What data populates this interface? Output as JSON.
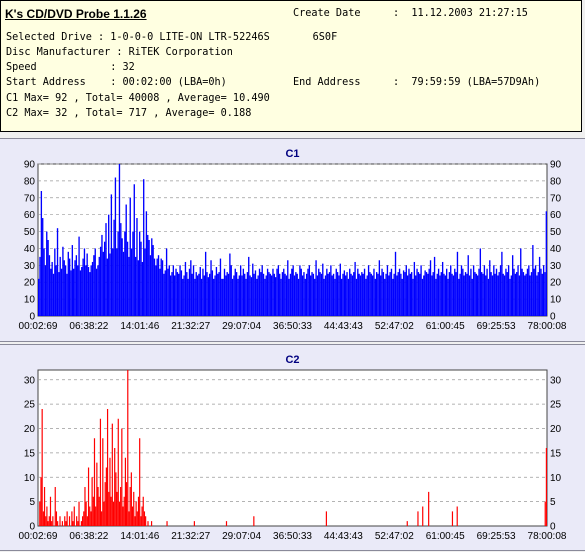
{
  "info": {
    "title": "K's CD/DVD Probe 1.1.26",
    "create_date_label": "Create Date",
    "create_date_value": ":  11.12.2003 21:27:15",
    "selected_drive": "Selected Drive : 1-0-0-0 LITE-ON LTR-52246S       6S0F",
    "disc_manufacturer": "Disc Manufacturer : RiTEK Corporation",
    "speed": "Speed            : 32",
    "start_address": "Start Address    : 00:02:00 (LBA=0h)",
    "end_address_label": "End Address",
    "end_address_value": ":  79:59:59 (LBA=57D9Ah)",
    "c1_summary": "C1 Max= 92 , Total= 40008 , Average= 10.490",
    "c2_summary": "C2 Max= 32 , Total= 717 , Average= 0.188"
  },
  "colors": {
    "c1_bar": "#0000ff",
    "c2_bar": "#ff0000",
    "title_color": "#000080",
    "plot_bg": "#ffffff",
    "grid": "#9a9a9a"
  },
  "chart_data": [
    {
      "type": "bar",
      "title": "C1",
      "x_start": "00:02:69",
      "x_end": "79:59:59",
      "x_tick_labels": [
        "00:02:69",
        "06:38:22",
        "14:01:46",
        "21:32:27",
        "29:07:04",
        "36:50:33",
        "44:43:43",
        "52:47:02",
        "61:00:45",
        "69:25:53",
        "78:00:08"
      ],
      "y_ticks": [
        0,
        10,
        20,
        30,
        40,
        50,
        60,
        70,
        80,
        90
      ],
      "ylim": [
        0,
        90
      ],
      "grid": true,
      "max": 92,
      "total": 40008,
      "average": 10.49,
      "series": [
        {
          "values": [
            22,
            35,
            74,
            58,
            40,
            30,
            50,
            45,
            36,
            28,
            32,
            25,
            40,
            30,
            52,
            26,
            35,
            28,
            41,
            33,
            30,
            25,
            38,
            34,
            27,
            42,
            28,
            33,
            36,
            30,
            47,
            27,
            29,
            34,
            40,
            30,
            37,
            29,
            26,
            30,
            32,
            36,
            40,
            28,
            30,
            35,
            41,
            48,
            38,
            44,
            55,
            34,
            60,
            37,
            72,
            40,
            57,
            82,
            40,
            50,
            91,
            55,
            46,
            38,
            50,
            66,
            44,
            35,
            70,
            40,
            50,
            78,
            35,
            58,
            33,
            50,
            44,
            32,
            81,
            40,
            62,
            48,
            45,
            36,
            46,
            42,
            34,
            30,
            34,
            36,
            28,
            34,
            33,
            25,
            27,
            40,
            28,
            30,
            24,
            26,
            30,
            24,
            28,
            26,
            25,
            30,
            27,
            22,
            24,
            32,
            26,
            22,
            28,
            33,
            25,
            30,
            22,
            26,
            24,
            25,
            29,
            22,
            28,
            24,
            38,
            26,
            23,
            25,
            33,
            27,
            22,
            24,
            29,
            25,
            26,
            34,
            22,
            22,
            28,
            24,
            26,
            25,
            37,
            30,
            22,
            24,
            28,
            26,
            22,
            24,
            30,
            24,
            28,
            25,
            22,
            26,
            35,
            24,
            23,
            31,
            25,
            27,
            22,
            24,
            28,
            26,
            30,
            25,
            22,
            24,
            28,
            26,
            25,
            24,
            28,
            25,
            23,
            28,
            30,
            25,
            22,
            26,
            28,
            25,
            24,
            33,
            22,
            25,
            28,
            30,
            24,
            26,
            25,
            22,
            30,
            28,
            24,
            26,
            22,
            25,
            28,
            30,
            24,
            26,
            25,
            22,
            33,
            24,
            28,
            26,
            25,
            31,
            22,
            24,
            28,
            25,
            26,
            30,
            24,
            25,
            22,
            28,
            26,
            24,
            31,
            22,
            25,
            27,
            24,
            26,
            22,
            28,
            25,
            24,
            26,
            32,
            22,
            28,
            25,
            24,
            26,
            25,
            28,
            22,
            24,
            30,
            26,
            25,
            24,
            28,
            22,
            26,
            25,
            33,
            24,
            28,
            26,
            22,
            25,
            30,
            24,
            26,
            28,
            22,
            25,
            38,
            24,
            26,
            28,
            25,
            22,
            27,
            26,
            30,
            24,
            28,
            25,
            26,
            22,
            32,
            24,
            28,
            26,
            25,
            30,
            22,
            24,
            27,
            26,
            25,
            28,
            33,
            24,
            26,
            35,
            22,
            25,
            28,
            24,
            26,
            32,
            25,
            24,
            28,
            22,
            26,
            30,
            25,
            24,
            28,
            26,
            38,
            22,
            25,
            30,
            28,
            24,
            26,
            25,
            36,
            24,
            28,
            22,
            30,
            26,
            25,
            24,
            28,
            40,
            26,
            25,
            30,
            24,
            28,
            22,
            33,
            26,
            24,
            30,
            25,
            28,
            24,
            26,
            30,
            38,
            25,
            24,
            28,
            26,
            30,
            22,
            24,
            36,
            28,
            25,
            26,
            30,
            24,
            40,
            28,
            26,
            24,
            25,
            28,
            30,
            24,
            26,
            42,
            28,
            30,
            24,
            26,
            35,
            28,
            25,
            30,
            26,
            62
          ]
        }
      ]
    },
    {
      "type": "bar",
      "title": "C2",
      "x_start": "00:02:69",
      "x_end": "79:59:59",
      "x_tick_labels": [
        "00:02:69",
        "06:38:22",
        "14:01:46",
        "21:32:27",
        "29:07:04",
        "36:50:33",
        "44:43:43",
        "52:47:02",
        "61:00:45",
        "69:25:53",
        "78:00:08"
      ],
      "y_ticks": [
        0,
        5,
        10,
        15,
        20,
        25,
        30
      ],
      "ylim": [
        0,
        32
      ],
      "grid": true,
      "max": 32,
      "total": 717,
      "average": 0.188,
      "series": [
        {
          "values": [
            0,
            5,
            10,
            24,
            3,
            8,
            2,
            4,
            1,
            2,
            6,
            1,
            2,
            0,
            8,
            3,
            1,
            0,
            2,
            0,
            1,
            0,
            2,
            1,
            3,
            0,
            2,
            0,
            3,
            1,
            4,
            0,
            2,
            1,
            5,
            0,
            1,
            2,
            3,
            8,
            5,
            2,
            12,
            4,
            3,
            10,
            6,
            18,
            4,
            13,
            8,
            6,
            22,
            3,
            18,
            5,
            9,
            12,
            24,
            7,
            14,
            6,
            21,
            5,
            16,
            11,
            7,
            22,
            5,
            8,
            20,
            4,
            6,
            14,
            9,
            32,
            3,
            8,
            11,
            4,
            7,
            2,
            5,
            3,
            6,
            18,
            2,
            4,
            6,
            3,
            2,
            0,
            1,
            0,
            0,
            1,
            0,
            0,
            0,
            0,
            0,
            0,
            0,
            0,
            0,
            0,
            0,
            0,
            1,
            0,
            0,
            0,
            0,
            0,
            0,
            0,
            0,
            0,
            0,
            0,
            0,
            0,
            0,
            0,
            0,
            0,
            0,
            0,
            0,
            0,
            0,
            1,
            0,
            0,
            0,
            0,
            0,
            0,
            0,
            0,
            0,
            0,
            0,
            0,
            0,
            0,
            0,
            0,
            0,
            0,
            0,
            0,
            0,
            0,
            0,
            0,
            0,
            0,
            1,
            0,
            0,
            0,
            0,
            0,
            0,
            0,
            0,
            0,
            0,
            0,
            0,
            0,
            0,
            0,
            0,
            0,
            0,
            0,
            0,
            0,
            0,
            2,
            0,
            0,
            0,
            0,
            0,
            0,
            0,
            0,
            0,
            0,
            0,
            0,
            0,
            0,
            0,
            0,
            0,
            0,
            0,
            0,
            0,
            0,
            0,
            0,
            0,
            0,
            0,
            0,
            0,
            0,
            0,
            0,
            0,
            0,
            0,
            0,
            0,
            0,
            0,
            0,
            0,
            0,
            0,
            0,
            0,
            0,
            0,
            0,
            0,
            0,
            0,
            0,
            0,
            0,
            0,
            0,
            0,
            0,
            0,
            0,
            3,
            0,
            0,
            0,
            0,
            0,
            0,
            0,
            0,
            0,
            0,
            0,
            0,
            0,
            0,
            0,
            0,
            0,
            0,
            0,
            0,
            0,
            0,
            0,
            0,
            0,
            0,
            0,
            0,
            0,
            0,
            0,
            0,
            0,
            0,
            0,
            0,
            0,
            0,
            0,
            0,
            0,
            0,
            0,
            0,
            0,
            0,
            0,
            0,
            0,
            0,
            0,
            0,
            0,
            0,
            0,
            0,
            0,
            0,
            0,
            0,
            0,
            0,
            0,
            0,
            0,
            0,
            0,
            1,
            0,
            0,
            0,
            0,
            0,
            0,
            0,
            0,
            3,
            0,
            0,
            0,
            4,
            0,
            0,
            0,
            0,
            7,
            0,
            0,
            0,
            0,
            0,
            0,
            0,
            0,
            0,
            0,
            0,
            0,
            0,
            0,
            0,
            0,
            0,
            0,
            0,
            3,
            0,
            0,
            0,
            4,
            0,
            0,
            0,
            0,
            0,
            0,
            0,
            0,
            0,
            0,
            0,
            0,
            0,
            0,
            0,
            0,
            0,
            0,
            0,
            0,
            0,
            0,
            0,
            0,
            0,
            0,
            0,
            0,
            0,
            0,
            0,
            0,
            0,
            0,
            0,
            0,
            0,
            0,
            0,
            0,
            0,
            0,
            0,
            0,
            0,
            0,
            0,
            0,
            0,
            0,
            0,
            0,
            0,
            0,
            0,
            0,
            0,
            0,
            0,
            0,
            0,
            0,
            0,
            0,
            0,
            0,
            0,
            0,
            0,
            0,
            0,
            0,
            0,
            5,
            16
          ]
        }
      ]
    }
  ]
}
